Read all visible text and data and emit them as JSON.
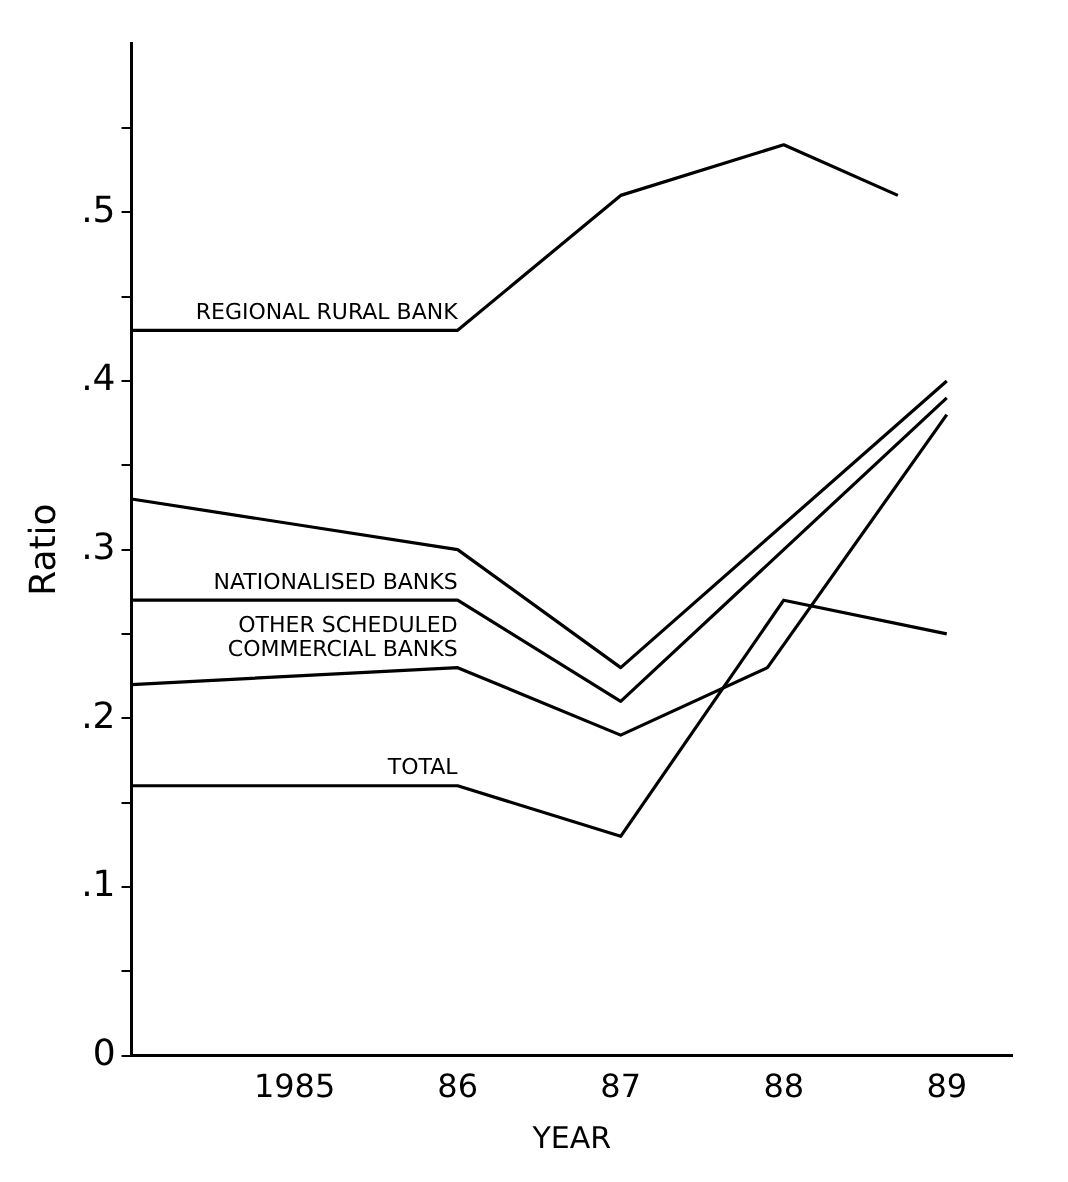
{
  "chart_data": {
    "type": "line",
    "xlabel": "YEAR",
    "ylabel": "Ratio",
    "xlim": [
      1984,
      1989.4
    ],
    "ylim": [
      0,
      0.6
    ],
    "xticks": [
      {
        "value": 1985,
        "label": "1985"
      },
      {
        "value": 1986,
        "label": "86"
      },
      {
        "value": 1987,
        "label": "87"
      },
      {
        "value": 1988,
        "label": "88"
      },
      {
        "value": 1989,
        "label": "89"
      }
    ],
    "yticks": [
      0,
      {
        "value": 0.05,
        "label": null
      },
      {
        "value": 0.1,
        "label": ".1"
      },
      {
        "value": 0.15,
        "label": null
      },
      {
        "value": 0.2,
        "label": ".2"
      },
      {
        "value": 0.25,
        "label": null
      },
      {
        "value": 0.3,
        "label": ".3"
      },
      {
        "value": 0.35,
        "label": null
      },
      {
        "value": 0.4,
        "label": ".4"
      },
      {
        "value": 0.45,
        "label": null
      },
      {
        "value": 0.5,
        "label": ".5"
      },
      {
        "value": 0.55,
        "label": null
      }
    ],
    "grid": false,
    "legend": false,
    "marker": "none",
    "line_style": "solid",
    "series": [
      {
        "name": "REGIONAL RURAL BANK",
        "color": "#000000",
        "x": [
          1984,
          1986,
          1987,
          1988,
          1988.7
        ],
        "values": [
          0.43,
          0.43,
          0.51,
          0.54,
          0.51
        ]
      },
      {
        "color": "#000000",
        "x": [
          1984,
          1986,
          1987,
          1989
        ],
        "values": [
          0.33,
          0.3,
          0.23,
          0.4
        ]
      },
      {
        "name": "NATIONALISED BANKS",
        "color": "#000000",
        "x": [
          1984,
          1986,
          1987,
          1989
        ],
        "values": [
          0.27,
          0.27,
          0.21,
          0.39
        ]
      },
      {
        "name": "OTHER SCHEDULED COMMERCIAL BANKS",
        "color": "#000000",
        "x": [
          1984,
          1986,
          1987,
          1987.9,
          1989
        ],
        "values": [
          0.22,
          0.23,
          0.19,
          0.23,
          0.38
        ]
      },
      {
        "name": "TOTAL",
        "color": "#000000",
        "x": [
          1984,
          1986,
          1987,
          1988,
          1989
        ],
        "values": [
          0.16,
          0.16,
          0.13,
          0.27,
          0.25
        ]
      }
    ]
  }
}
